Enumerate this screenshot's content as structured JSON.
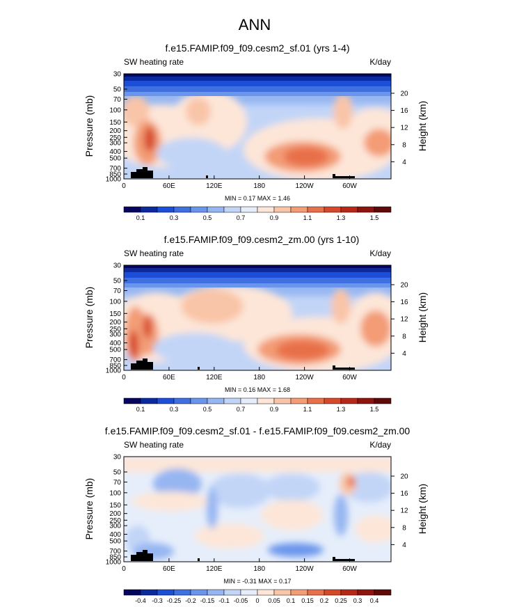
{
  "figure": {
    "title": "ANN"
  },
  "chart_data": [
    {
      "type": "heatmap",
      "title": "f.e15.FAMIP.f09_f09.cesm2_sf.01 (yrs 1-4)",
      "left_label": "SW heating rate",
      "right_label": "K/day",
      "ylabel": "Pressure (mb)",
      "y2label": "Height (km)",
      "x_ticks": [
        "0",
        "60E",
        "120E",
        "180",
        "120W",
        "60W"
      ],
      "pressure_ticks": [
        "30",
        "50",
        "70",
        "100",
        "150",
        "200",
        "250",
        "300",
        "400",
        "500",
        "700",
        "850",
        "1000"
      ],
      "height_ticks": [
        "20",
        "16",
        "12",
        "8",
        "4"
      ],
      "min": 0.17,
      "max": 1.46,
      "stats_text": "MIN =  0.17  MAX =  1.46",
      "colorbar": {
        "labels": [
          "0.1",
          "0.3",
          "0.5",
          "0.7",
          "0.9",
          "1.1",
          "1.3",
          "1.5"
        ],
        "colors": [
          "#06065f",
          "#0a2a9e",
          "#1d4ed8",
          "#3f6fe0",
          "#6a95ec",
          "#96b6f2",
          "#c2d5f7",
          "#e6eefb",
          "#fde6d8",
          "#f9c5a8",
          "#f39c76",
          "#e8704a",
          "#d6482a",
          "#b82818",
          "#8e140d",
          "#5e0a08"
        ]
      }
    },
    {
      "type": "heatmap",
      "title": "f.e15.FAMIP.f09_f09.cesm2_zm.00 (yrs 1-10)",
      "left_label": "SW heating rate",
      "right_label": "K/day",
      "ylabel": "Pressure (mb)",
      "y2label": "Height (km)",
      "x_ticks": [
        "0",
        "60E",
        "120E",
        "180",
        "120W",
        "60W"
      ],
      "pressure_ticks": [
        "30",
        "50",
        "70",
        "100",
        "150",
        "200",
        "250",
        "300",
        "400",
        "500",
        "700",
        "850",
        "1000"
      ],
      "height_ticks": [
        "20",
        "16",
        "12",
        "8",
        "4"
      ],
      "min": 0.16,
      "max": 1.68,
      "stats_text": "MIN =  0.16  MAX =  1.68",
      "colorbar": {
        "labels": [
          "0.1",
          "0.3",
          "0.5",
          "0.7",
          "0.9",
          "1.1",
          "1.3",
          "1.5"
        ],
        "colors": [
          "#06065f",
          "#0a2a9e",
          "#1d4ed8",
          "#3f6fe0",
          "#6a95ec",
          "#96b6f2",
          "#c2d5f7",
          "#e6eefb",
          "#fde6d8",
          "#f9c5a8",
          "#f39c76",
          "#e8704a",
          "#d6482a",
          "#b82818",
          "#8e140d",
          "#5e0a08"
        ]
      }
    },
    {
      "type": "heatmap",
      "title": "f.e15.FAMIP.f09_f09.cesm2_sf.01 - f.e15.FAMIP.f09_f09.cesm2_zm.00",
      "left_label": "SW heating rate",
      "right_label": "K/day",
      "ylabel": "Pressure (mb)",
      "y2label": "Height (km)",
      "x_ticks": [
        "0",
        "60E",
        "120E",
        "180",
        "120W",
        "60W"
      ],
      "pressure_ticks": [
        "30",
        "50",
        "70",
        "100",
        "150",
        "200",
        "250",
        "300",
        "400",
        "500",
        "700",
        "850",
        "1000"
      ],
      "height_ticks": [
        "20",
        "16",
        "12",
        "8",
        "4"
      ],
      "min": -0.31,
      "max": 0.17,
      "stats_text": "MIN = -0.31  MAX =  0.17",
      "colorbar": {
        "labels": [
          "-0.4",
          "-0.3",
          "-0.25",
          "-0.2",
          "-0.15",
          "-0.1",
          "-0.05",
          "0",
          "0.05",
          "0.1",
          "0.15",
          "0.2",
          "0.25",
          "0.3",
          "0.4"
        ],
        "colors": [
          "#06065f",
          "#0a2a9e",
          "#1d4ed8",
          "#3f6fe0",
          "#6a95ec",
          "#96b6f2",
          "#c2d5f7",
          "#e6eefb",
          "#fde6d8",
          "#f9c5a8",
          "#f39c76",
          "#e8704a",
          "#d6482a",
          "#b82818",
          "#8e140d",
          "#5e0a08"
        ]
      }
    }
  ]
}
